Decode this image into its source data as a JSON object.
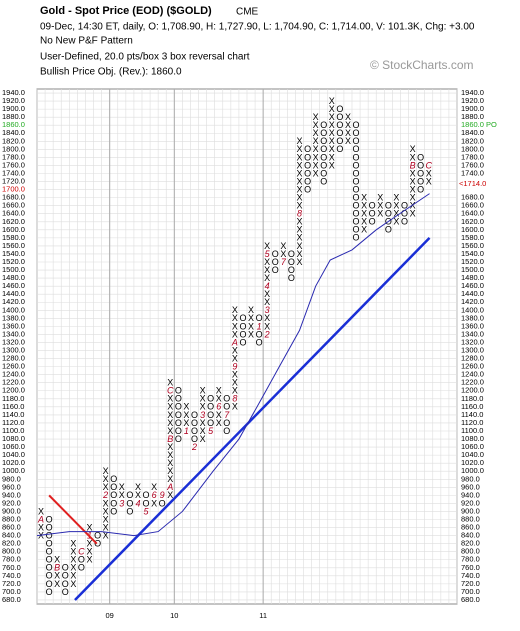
{
  "chart_data": {
    "type": "pointfigure",
    "title": "Gold - Spot Price (EOD) ($GOLD)",
    "exchange": "CME",
    "subtitle": "09-Dec, 14:30 ET, daily, O: 1,708.90, H: 1,727.90, L: 1,704.90, C: 1,714.00, V: 101.3K, Chg: +3.00",
    "pattern": "No New P&F Pattern",
    "settings_text": "User-Defined, 20.0 pts/box 3 box reversal chart",
    "objective_text": "Bullish Price Obj. (Rev.): 1860.0",
    "watermark": "© StockCharts.com",
    "box_size": 20,
    "ylim": [
      670,
      1950
    ],
    "xlim": [
      0,
      52
    ],
    "grid": true,
    "yticks": [
      {
        "value": 680,
        "label": "680.0"
      },
      {
        "value": 700,
        "label": "700.0"
      },
      {
        "value": 720,
        "label": "720.0"
      },
      {
        "value": 740,
        "label": "740.0"
      },
      {
        "value": 760,
        "label": "760.0"
      },
      {
        "value": 780,
        "label": "780.0"
      },
      {
        "value": 800,
        "label": "800.0"
      },
      {
        "value": 820,
        "label": "820.0"
      },
      {
        "value": 840,
        "label": "840.0"
      },
      {
        "value": 860,
        "label": "860.0"
      },
      {
        "value": 880,
        "label": "880.0"
      },
      {
        "value": 900,
        "label": "900.0"
      },
      {
        "value": 920,
        "label": "920.0"
      },
      {
        "value": 940,
        "label": "940.0"
      },
      {
        "value": 960,
        "label": "960.0"
      },
      {
        "value": 980,
        "label": "980.0"
      },
      {
        "value": 1000,
        "label": "1000.0"
      },
      {
        "value": 1020,
        "label": "1020.0"
      },
      {
        "value": 1040,
        "label": "1040.0"
      },
      {
        "value": 1060,
        "label": "1060.0"
      },
      {
        "value": 1080,
        "label": "1080.0"
      },
      {
        "value": 1100,
        "label": "1100.0"
      },
      {
        "value": 1120,
        "label": "1120.0"
      },
      {
        "value": 1140,
        "label": "1140.0"
      },
      {
        "value": 1160,
        "label": "1160.0"
      },
      {
        "value": 1180,
        "label": "1180.0"
      },
      {
        "value": 1200,
        "label": "1200.0"
      },
      {
        "value": 1220,
        "label": "1220.0"
      },
      {
        "value": 1240,
        "label": "1240.0"
      },
      {
        "value": 1260,
        "label": "1260.0"
      },
      {
        "value": 1280,
        "label": "1280.0"
      },
      {
        "value": 1300,
        "label": "1300.0"
      },
      {
        "value": 1320,
        "label": "1320.0"
      },
      {
        "value": 1340,
        "label": "1340.0"
      },
      {
        "value": 1360,
        "label": "1360.0"
      },
      {
        "value": 1380,
        "label": "1380.0"
      },
      {
        "value": 1400,
        "label": "1400.0"
      },
      {
        "value": 1420,
        "label": "1420.0"
      },
      {
        "value": 1440,
        "label": "1440.0"
      },
      {
        "value": 1460,
        "label": "1460.0"
      },
      {
        "value": 1480,
        "label": "1480.0"
      },
      {
        "value": 1500,
        "label": "1500.0"
      },
      {
        "value": 1520,
        "label": "1520.0"
      },
      {
        "value": 1540,
        "label": "1540.0"
      },
      {
        "value": 1560,
        "label": "1560.0"
      },
      {
        "value": 1580,
        "label": "1580.0"
      },
      {
        "value": 1600,
        "label": "1600.0"
      },
      {
        "value": 1620,
        "label": "1620.0"
      },
      {
        "value": 1640,
        "label": "1640.0"
      },
      {
        "value": 1660,
        "label": "1660.0"
      },
      {
        "value": 1680,
        "label": "1680.0"
      },
      {
        "value": 1700,
        "label": "1700.0"
      },
      {
        "value": 1720,
        "label": "1720.0"
      },
      {
        "value": 1740,
        "label": "1740.0"
      },
      {
        "value": 1760,
        "label": "1760.0"
      },
      {
        "value": 1780,
        "label": "1780.0"
      },
      {
        "value": 1800,
        "label": "1800.0"
      },
      {
        "value": 1820,
        "label": "1820.0"
      },
      {
        "value": 1840,
        "label": "1840.0"
      },
      {
        "value": 1860,
        "label": "1860.0"
      },
      {
        "value": 1880,
        "label": "1880.0"
      },
      {
        "value": 1900,
        "label": "1900.0"
      },
      {
        "value": 1920,
        "label": "1920.0"
      },
      {
        "value": 1940,
        "label": "1940.0"
      }
    ],
    "xticks": [
      {
        "value": 9,
        "label": "09"
      },
      {
        "value": 17,
        "label": "10"
      },
      {
        "value": 28,
        "label": "11"
      }
    ],
    "price_objective": {
      "value": 1860,
      "label": "1860.0 PO",
      "color": "#22aa22"
    },
    "last_box": {
      "value": 1700,
      "color": "#cc0000"
    },
    "last_price": {
      "value": 1714,
      "label": "<1714.0",
      "color": "#cc0000"
    },
    "label_color": "#b00020",
    "columns": [
      {
        "box": "X",
        "low": 840,
        "high": 900,
        "labels": [
          {
            "value": 880,
            "label": "A"
          }
        ]
      },
      {
        "box": "O",
        "low": 700,
        "high": 880,
        "labels": []
      },
      {
        "box": "X",
        "low": 720,
        "high": 780,
        "labels": [
          {
            "value": 760,
            "label": "B"
          }
        ]
      },
      {
        "box": "O",
        "low": 700,
        "high": 760,
        "labels": []
      },
      {
        "box": "X",
        "low": 720,
        "high": 820,
        "labels": []
      },
      {
        "box": "O",
        "low": 760,
        "high": 800,
        "labels": [
          {
            "value": 800,
            "label": "C"
          }
        ]
      },
      {
        "box": "X",
        "low": 780,
        "high": 860,
        "labels": [
          {
            "value": 840,
            "label": "1"
          }
        ]
      },
      {
        "box": "O",
        "low": 820,
        "high": 840,
        "labels": []
      },
      {
        "box": "X",
        "low": 840,
        "high": 1000,
        "labels": [
          {
            "value": 940,
            "label": "2"
          }
        ]
      },
      {
        "box": "O",
        "low": 900,
        "high": 980,
        "labels": []
      },
      {
        "box": "X",
        "low": 920,
        "high": 960,
        "labels": [
          {
            "value": 920,
            "label": "3"
          }
        ]
      },
      {
        "box": "O",
        "low": 900,
        "high": 940,
        "labels": []
      },
      {
        "box": "X",
        "low": 920,
        "high": 960,
        "labels": [
          {
            "value": 920,
            "label": "4"
          }
        ]
      },
      {
        "box": "O",
        "low": 900,
        "high": 940,
        "labels": [
          {
            "value": 900,
            "label": "5"
          }
        ]
      },
      {
        "box": "X",
        "low": 920,
        "high": 960,
        "labels": [
          {
            "value": 940,
            "label": "6"
          }
        ]
      },
      {
        "box": "O",
        "low": 920,
        "high": 940,
        "labels": [
          {
            "value": 940,
            "label": "9"
          }
        ]
      },
      {
        "box": "X",
        "low": 940,
        "high": 1220,
        "labels": [
          {
            "value": 960,
            "label": "A"
          },
          {
            "value": 1080,
            "label": "B"
          },
          {
            "value": 1200,
            "label": "C"
          }
        ]
      },
      {
        "box": "O",
        "low": 1080,
        "high": 1200,
        "labels": []
      },
      {
        "box": "X",
        "low": 1100,
        "high": 1160,
        "labels": [
          {
            "value": 1100,
            "label": "1"
          }
        ]
      },
      {
        "box": "O",
        "low": 1060,
        "high": 1140,
        "labels": [
          {
            "value": 1060,
            "label": "2"
          }
        ]
      },
      {
        "box": "X",
        "low": 1080,
        "high": 1200,
        "labels": [
          {
            "value": 1140,
            "label": "3"
          }
        ]
      },
      {
        "box": "O",
        "low": 1100,
        "high": 1180,
        "labels": [
          {
            "value": 1100,
            "label": "5"
          }
        ]
      },
      {
        "box": "X",
        "low": 1120,
        "high": 1200,
        "labels": [
          {
            "value": 1160,
            "label": "6"
          }
        ]
      },
      {
        "box": "O",
        "low": 1100,
        "high": 1180,
        "labels": [
          {
            "value": 1140,
            "label": "7"
          }
        ]
      },
      {
        "box": "X",
        "low": 1160,
        "high": 1400,
        "labels": [
          {
            "value": 1180,
            "label": "8"
          },
          {
            "value": 1260,
            "label": "9"
          },
          {
            "value": 1320,
            "label": "A"
          }
        ]
      },
      {
        "box": "O",
        "low": 1320,
        "high": 1380,
        "labels": []
      },
      {
        "box": "X",
        "low": 1340,
        "high": 1400,
        "labels": []
      },
      {
        "box": "O",
        "low": 1320,
        "high": 1380,
        "labels": [
          {
            "value": 1360,
            "label": "1"
          }
        ]
      },
      {
        "box": "X",
        "low": 1340,
        "high": 1560,
        "labels": [
          {
            "value": 1340,
            "label": "2"
          },
          {
            "value": 1400,
            "label": "3"
          },
          {
            "value": 1460,
            "label": "4"
          },
          {
            "value": 1540,
            "label": "5"
          }
        ]
      },
      {
        "box": "O",
        "low": 1500,
        "high": 1540,
        "labels": []
      },
      {
        "box": "X",
        "low": 1520,
        "high": 1560,
        "labels": [
          {
            "value": 1520,
            "label": "7"
          }
        ]
      },
      {
        "box": "O",
        "low": 1480,
        "high": 1540,
        "labels": []
      },
      {
        "box": "X",
        "low": 1520,
        "high": 1820,
        "labels": [
          {
            "value": 1640,
            "label": "8"
          }
        ]
      },
      {
        "box": "O",
        "low": 1700,
        "high": 1800,
        "labels": []
      },
      {
        "box": "X",
        "low": 1740,
        "high": 1880,
        "labels": []
      },
      {
        "box": "O",
        "low": 1720,
        "high": 1860,
        "labels": []
      },
      {
        "box": "X",
        "low": 1760,
        "high": 1920,
        "labels": []
      },
      {
        "box": "O",
        "low": 1800,
        "high": 1900,
        "labels": []
      },
      {
        "box": "X",
        "low": 1820,
        "high": 1880,
        "labels": []
      },
      {
        "box": "O",
        "low": 1580,
        "high": 1860,
        "labels": []
      },
      {
        "box": "X",
        "low": 1600,
        "high": 1680,
        "labels": []
      },
      {
        "box": "O",
        "low": 1620,
        "high": 1660,
        "labels": []
      },
      {
        "box": "X",
        "low": 1640,
        "high": 1680,
        "labels": []
      },
      {
        "box": "O",
        "low": 1600,
        "high": 1660,
        "labels": []
      },
      {
        "box": "X",
        "low": 1620,
        "high": 1680,
        "labels": []
      },
      {
        "box": "O",
        "low": 1620,
        "high": 1660,
        "labels": []
      },
      {
        "box": "X",
        "low": 1640,
        "high": 1800,
        "labels": [
          {
            "value": 1760,
            "label": "B"
          }
        ]
      },
      {
        "box": "O",
        "low": 1700,
        "high": 1780,
        "labels": []
      },
      {
        "box": "X",
        "low": 1720,
        "high": 1760,
        "labels": [
          {
            "value": 1760,
            "label": "C"
          }
        ]
      }
    ],
    "lines": [
      {
        "color": "#1a2fd6",
        "width": 2.5,
        "x": [
          4.7,
          48.6
        ],
        "values": [
          680,
          1580
        ]
      },
      {
        "color": "#e02020",
        "width": 2,
        "x": [
          1.5,
          7.4
        ],
        "values": [
          940,
          820
        ]
      },
      {
        "color": "#2a2ab0",
        "width": 1,
        "x": [
          0,
          4,
          8,
          12,
          15,
          18,
          21.8,
          25,
          27.8,
          30,
          32.5,
          34.5,
          36.3,
          39,
          42,
          44.9,
          48.6
        ],
        "values": [
          840,
          850,
          850,
          840,
          850,
          900,
          1000,
          1080,
          1180,
          1260,
          1350,
          1460,
          1525,
          1550,
          1600,
          1640,
          1690
        ]
      }
    ]
  }
}
